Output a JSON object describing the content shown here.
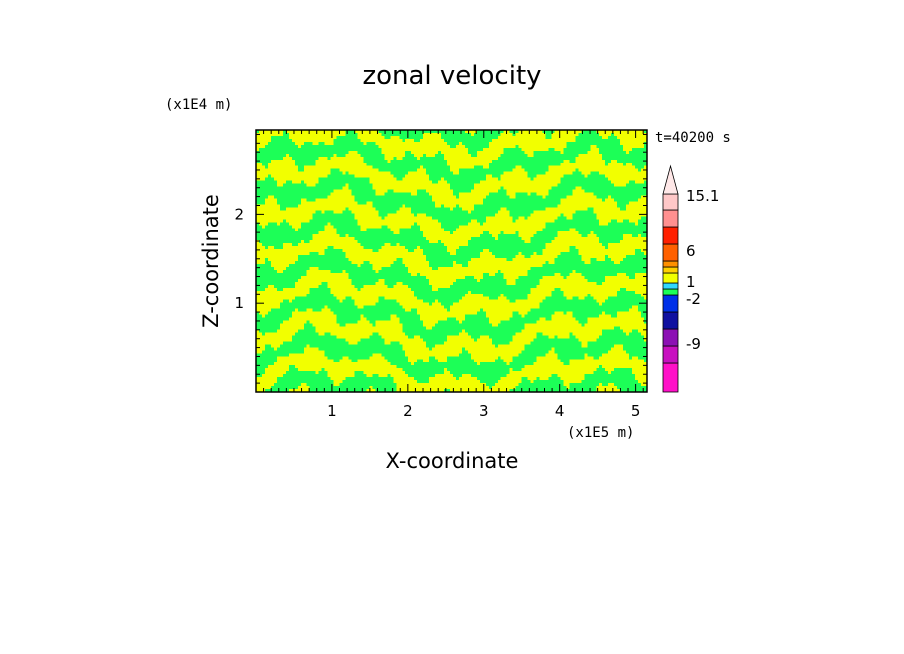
{
  "chart_data": {
    "type": "heatmap",
    "title": "zonal velocity",
    "xlabel": "X-coordinate",
    "ylabel": "Z-coordinate",
    "x_scale_label": "(x1E5 m)",
    "y_scale_label": "(x1E4 m)",
    "time_label": "t=40200 s",
    "xlim": [
      0,
      5.15
    ],
    "ylim": [
      0,
      2.95
    ],
    "x_ticks": [
      "1",
      "2",
      "3",
      "4",
      "5"
    ],
    "y_ticks": [
      "1",
      "2"
    ],
    "dominant_fill": {
      "positive": "#f2ff00",
      "negative": "#1cff57"
    },
    "colorbar": {
      "labels": [
        "15.1",
        "6",
        "1",
        "-2",
        "-9"
      ],
      "bands_bottom_to_top": [
        "#ff10c8",
        "#c810c0",
        "#8c10b4",
        "#1010a0",
        "#0030e8",
        "#1cff57",
        "#30d8ff",
        "#f2ff00",
        "#ffd000",
        "#ff9000",
        "#ff6000",
        "#ff2000",
        "#ff9090",
        "#ffc8c8"
      ],
      "arrow_color": "#ffe8e8"
    }
  }
}
